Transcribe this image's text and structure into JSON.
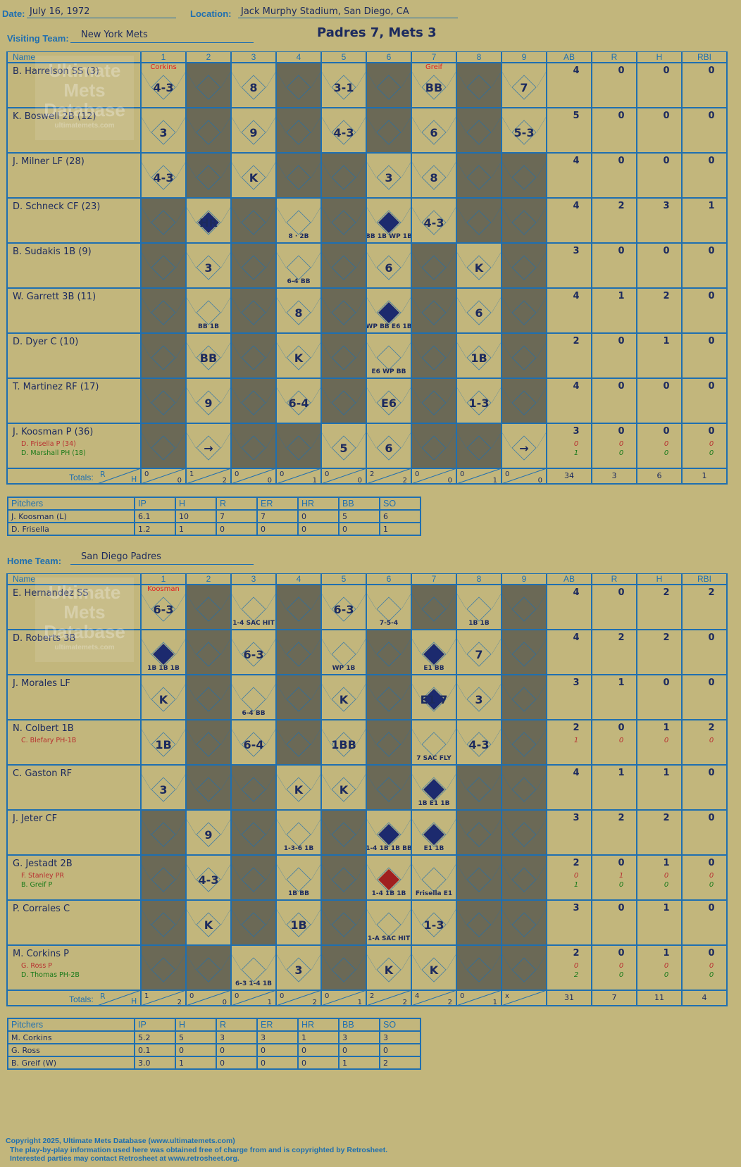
{
  "header": {
    "date_label": "Date:",
    "date": "July 16, 1972",
    "location_label": "Location:",
    "location": "Jack Murphy Stadium, San Diego, CA",
    "final": "Padres 7, Mets 3"
  },
  "visiting": {
    "team_label": "Visiting Team:",
    "team": "New York Mets",
    "columns": [
      "Name",
      "1",
      "2",
      "3",
      "4",
      "5",
      "6",
      "7",
      "8",
      "9",
      "AB",
      "R",
      "H",
      "RBI"
    ],
    "pitcher_notes": [
      {
        "inning": 1,
        "text": "Corkins"
      },
      {
        "inning": 7,
        "text": "Greif"
      }
    ],
    "players": [
      {
        "name": "B. Harrelson SS (3)",
        "cells": {
          "1": "4-3",
          "3": "8",
          "5": "3-1",
          "7": "BB",
          "9": "7"
        },
        "stats": [
          "4",
          "0",
          "0",
          "0"
        ]
      },
      {
        "name": "K. Boswell 2B (12)",
        "cells": {
          "1": "3",
          "3": "9",
          "5": "4-3",
          "7": "6",
          "9": "5-3"
        },
        "stats": [
          "5",
          "0",
          "0",
          "0"
        ]
      },
      {
        "name": "J. Milner LF (28)",
        "cells": {
          "1": "4-3",
          "3": "K",
          "6": "3",
          "7": "8"
        },
        "stats": [
          "4",
          "0",
          "0",
          "0"
        ]
      },
      {
        "name": "D. Schneck CF (23)",
        "cells": {
          "2": "HR",
          "4": "8 · 2B",
          "6": "BB 1B WP 1B",
          "7": "4-3"
        },
        "stats": [
          "4",
          "2",
          "3",
          "1"
        ]
      },
      {
        "name": "B. Sudakis 1B (9)",
        "cells": {
          "2": "3",
          "4": "6-4 BB",
          "6": "6",
          "8": "K"
        },
        "stats": [
          "3",
          "0",
          "0",
          "0"
        ]
      },
      {
        "name": "W. Garrett 3B (11)",
        "cells": {
          "2": "BB 1B",
          "4": "8",
          "6": "WP BB E6 1B",
          "8": "6"
        },
        "stats": [
          "4",
          "1",
          "2",
          "0"
        ]
      },
      {
        "name": "D. Dyer C (10)",
        "cells": {
          "2": "BB",
          "4": "K",
          "6": "E6 WP BB",
          "8": "1B"
        },
        "stats": [
          "2",
          "0",
          "1",
          "0"
        ]
      },
      {
        "name": "T. Martinez RF (17)",
        "cells": {
          "2": "9",
          "4": "6-4",
          "6": "E6",
          "8": "1-3"
        },
        "stats": [
          "4",
          "0",
          "0",
          "0"
        ]
      },
      {
        "name": "J. Koosman P (36)",
        "cells": {
          "2": "→",
          "5": "5",
          "6": "6",
          "9": "→"
        },
        "stats": [
          "3",
          "0",
          "0",
          "0"
        ],
        "subs": [
          {
            "name": "D. Frisella P (34)",
            "color": "red",
            "stats": [
              "0",
              "0",
              "0",
              "0"
            ]
          },
          {
            "name": "D. Marshall PH (18)",
            "color": "grn",
            "stats": [
              "1",
              "0",
              "0",
              "0"
            ]
          }
        ]
      }
    ],
    "totals_label": "Totals:",
    "totals": [
      [
        "0",
        "0"
      ],
      [
        "1",
        "2"
      ],
      [
        "0",
        "0"
      ],
      [
        "0",
        "1"
      ],
      [
        "0",
        "0"
      ],
      [
        "2",
        "2"
      ],
      [
        "0",
        "0"
      ],
      [
        "0",
        "1"
      ],
      [
        "0",
        "0"
      ]
    ],
    "totals_stats": [
      "34",
      "3",
      "6",
      "1"
    ],
    "pitchers": {
      "columns": [
        "Pitchers",
        "IP",
        "H",
        "R",
        "ER",
        "HR",
        "BB",
        "SO"
      ],
      "rows": [
        [
          "J. Koosman (L)",
          "6.1",
          "10",
          "7",
          "7",
          "0",
          "5",
          "6"
        ],
        [
          "D. Frisella",
          "1.2",
          "1",
          "0",
          "0",
          "0",
          "0",
          "1"
        ]
      ]
    }
  },
  "home": {
    "team_label": "Home Team:",
    "team": "San Diego Padres",
    "columns": [
      "Name",
      "1",
      "2",
      "3",
      "4",
      "5",
      "6",
      "7",
      "8",
      "9",
      "AB",
      "R",
      "H",
      "RBI"
    ],
    "pitcher_notes": [
      {
        "inning": 1,
        "text": "Koosman"
      }
    ],
    "players": [
      {
        "name": "E. Hernandez SS",
        "cells": {
          "1": "6-3",
          "3": "1-4 SAC HIT",
          "5": "6-3",
          "6": "7-5-4",
          "8": "1B 1B"
        },
        "stats": [
          "4",
          "0",
          "2",
          "2"
        ]
      },
      {
        "name": "D. Roberts 3B",
        "cells": {
          "1": "1B 1B 1B",
          "3": "6-3",
          "5": "WP 1B",
          "7": "E1 BB",
          "8": "7"
        },
        "stats": [
          "4",
          "2",
          "2",
          "0"
        ]
      },
      {
        "name": "J. Morales LF",
        "cells": {
          "1": "K",
          "3": "6-4 BB",
          "5": "K",
          "7": "E1 7",
          "8": "3"
        },
        "stats": [
          "3",
          "1",
          "0",
          "0"
        ]
      },
      {
        "name": "N. Colbert 1B",
        "cells": {
          "1": "1B",
          "3": "6-4",
          "5": "1BB",
          "7": "7 SAC FLY",
          "8": "4-3"
        },
        "stats": [
          "2",
          "0",
          "1",
          "2"
        ],
        "subs": [
          {
            "name": "C. Blefary PH-1B",
            "color": "red",
            "stats": [
              "1",
              "0",
              "0",
              "0"
            ]
          }
        ]
      },
      {
        "name": "C. Gaston RF",
        "cells": {
          "1": "3",
          "4": "K",
          "5": "K",
          "7": "1B E1 1B"
        },
        "stats": [
          "4",
          "1",
          "1",
          "0"
        ]
      },
      {
        "name": "J. Jeter CF",
        "cells": {
          "2": "9",
          "4": "1-3-6 1B",
          "6": "1-4 1B 1B BB",
          "7": "E1 1B"
        },
        "stats": [
          "3",
          "2",
          "2",
          "0"
        ]
      },
      {
        "name": "G. Jestadt 2B",
        "cells": {
          "2": "4-3",
          "4": "1B BB",
          "6": "1-4 1B 1B",
          "7": "Frisella E1"
        },
        "stats": [
          "2",
          "0",
          "1",
          "0"
        ],
        "subs": [
          {
            "name": "F. Stanley PR",
            "color": "red",
            "stats": [
              "0",
              "1",
              "0",
              "0"
            ]
          },
          {
            "name": "B. Greif P",
            "color": "grn",
            "stats": [
              "1",
              "0",
              "0",
              "0"
            ]
          }
        ]
      },
      {
        "name": "P. Corrales C",
        "cells": {
          "2": "K",
          "4": "1B",
          "6": "1-A SAC HIT",
          "7": "1-3"
        },
        "stats": [
          "3",
          "0",
          "1",
          "0"
        ]
      },
      {
        "name": "M. Corkins P",
        "cells": {
          "3": "6-3 1-4 1B",
          "4": "3",
          "6": "K",
          "7": "K"
        },
        "stats": [
          "2",
          "0",
          "1",
          "0"
        ],
        "subs": [
          {
            "name": "G. Ross P",
            "color": "red",
            "stats": [
              "0",
              "0",
              "0",
              "0"
            ]
          },
          {
            "name": "D. Thomas PH-2B",
            "color": "grn",
            "stats": [
              "2",
              "0",
              "0",
              "0"
            ]
          }
        ]
      }
    ],
    "totals_label": "Totals:",
    "totals": [
      [
        "1",
        "2"
      ],
      [
        "0",
        "0"
      ],
      [
        "0",
        "1"
      ],
      [
        "0",
        "2"
      ],
      [
        "0",
        "1"
      ],
      [
        "2",
        "2"
      ],
      [
        "4",
        "2"
      ],
      [
        "0",
        "1"
      ],
      [
        "x",
        ""
      ]
    ],
    "totals_stats": [
      "31",
      "7",
      "11",
      "4"
    ],
    "pitchers": {
      "columns": [
        "Pitchers",
        "IP",
        "H",
        "R",
        "ER",
        "HR",
        "BB",
        "SO"
      ],
      "rows": [
        [
          "M. Corkins",
          "5.2",
          "5",
          "3",
          "3",
          "1",
          "3",
          "3"
        ],
        [
          "G. Ross",
          "0.1",
          "0",
          "0",
          "0",
          "0",
          "0",
          "0"
        ],
        [
          "B. Greif (W)",
          "3.0",
          "1",
          "0",
          "0",
          "0",
          "1",
          "2"
        ]
      ]
    }
  },
  "watermark": {
    "line1": "Ultimate",
    "line2": "Mets",
    "line3": "Database",
    "line4": "ultimatemets.com"
  },
  "footer": {
    "copyright": "Copyright 2025, Ultimate Mets Database (www.ultimatemets.com)",
    "line2": "The play-by-play information used here was obtained free of charge from and is copyrighted by Retrosheet.",
    "line3": "Interested parties may contact Retrosheet at www.retrosheet.org."
  },
  "colors": {
    "background": "#c2b67c",
    "grid": "#1f6fb0",
    "shade": "#6b6956",
    "ink": "#1c2a5e",
    "run_blue": "#1c2a6e",
    "run_red": "#a02020"
  }
}
